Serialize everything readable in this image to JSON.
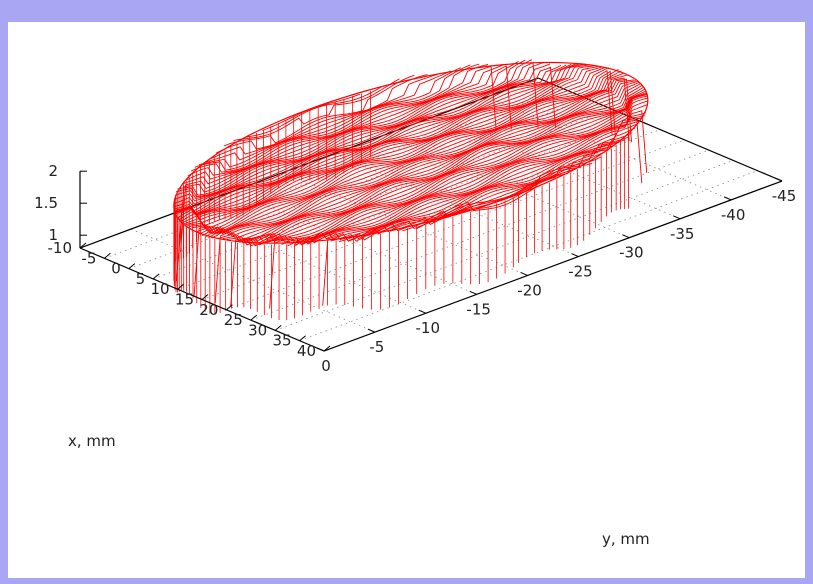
{
  "chart_data": {
    "type": "surface3d",
    "title": "",
    "xlabel": "x, mm",
    "ylabel": "y, mm",
    "zlabel": "",
    "x_ticks": [
      "-10",
      "-5",
      "0",
      "5",
      "10",
      "15",
      "20",
      "25",
      "30",
      "35",
      "40"
    ],
    "y_ticks": [
      "-45",
      "-40",
      "-35",
      "-30",
      "-25",
      "-20",
      "-15",
      "-10",
      "-5",
      "0"
    ],
    "z_ticks": [
      "1",
      "1.5",
      "2"
    ],
    "xlim": [
      -10,
      40
    ],
    "ylim": [
      -45,
      0
    ],
    "zlim": [
      0.8,
      2
    ],
    "grid": true,
    "series": [
      {
        "description": "scanned surface of a coin: disc of relief approx. 1.8 mm high on a 0.8 mm base",
        "center_x": 14,
        "center_y": -21,
        "radius": 21,
        "base_z": 0.8,
        "top_z": 1.8,
        "color": "#ff0000"
      }
    ]
  },
  "colors": {
    "background_frame": "#a9a6f4",
    "plot_background": "#ffffff",
    "surface_line": "#ff0000",
    "axis_line": "#000000",
    "grid_line": "#8a8a8a"
  }
}
